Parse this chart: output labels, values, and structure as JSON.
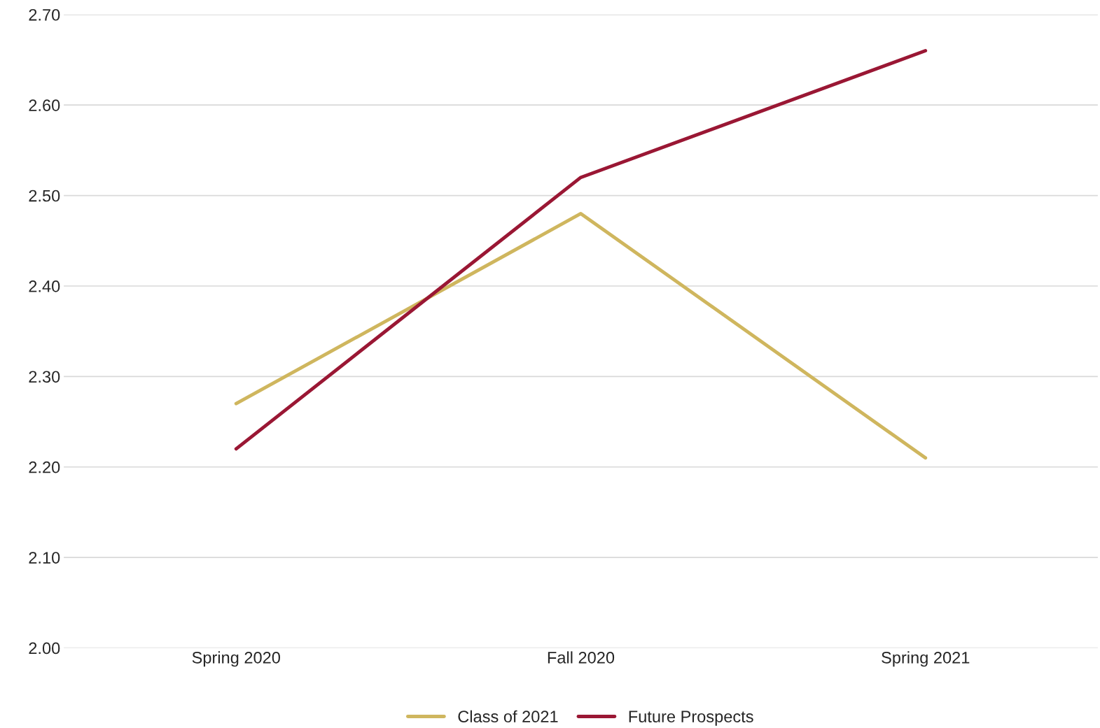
{
  "chart_data": {
    "type": "line",
    "categories": [
      "Spring 2020",
      "Fall 2020",
      "Spring 2021"
    ],
    "series": [
      {
        "name": "Class of 2021",
        "color": "#cfb65e",
        "values": [
          2.27,
          2.48,
          2.21
        ]
      },
      {
        "name": "Future Prospects",
        "color": "#9a1734",
        "values": [
          2.22,
          2.52,
          2.66
        ]
      }
    ],
    "ylim": [
      2.0,
      2.7
    ],
    "yticks": [
      {
        "value": 2.0,
        "label": "2.00"
      },
      {
        "value": 2.1,
        "label": "2.10"
      },
      {
        "value": 2.2,
        "label": "2.20"
      },
      {
        "value": 2.3,
        "label": "2.30"
      },
      {
        "value": 2.4,
        "label": "2.40"
      },
      {
        "value": 2.5,
        "label": "2.50"
      },
      {
        "value": 2.6,
        "label": "2.60"
      },
      {
        "value": 2.7,
        "label": "2.70"
      }
    ],
    "grid": "y",
    "legend": "bottom",
    "marker": "none",
    "line_style": "solid"
  }
}
